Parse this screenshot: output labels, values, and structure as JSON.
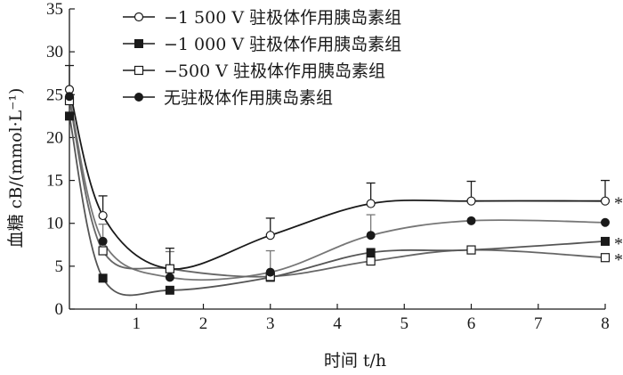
{
  "chart_data": {
    "type": "line",
    "xlabel": "时间 t/h",
    "ylabel": "血糖 cB/(mmol·L⁻¹)",
    "xlim": [
      0,
      8
    ],
    "ylim": [
      0,
      35
    ],
    "xticks": [
      1,
      2,
      3,
      4,
      5,
      6,
      7,
      8
    ],
    "yticks": [
      0,
      5,
      10,
      15,
      20,
      25,
      30,
      35
    ],
    "xtick_labels": [
      "1",
      "2",
      "3",
      "4",
      "5",
      "6",
      "7",
      "8"
    ],
    "ytick_labels": [
      "0",
      "5",
      "10",
      "15",
      "20",
      "25",
      "30",
      "35"
    ],
    "grid": false,
    "legend_position": "top-center",
    "series": [
      {
        "name": "−1 500 V 驻极体作用胰岛素组",
        "marker": "open-circle",
        "color": "#1a1a1a",
        "x": [
          0,
          0.5,
          1.5,
          3,
          4.5,
          6,
          8
        ],
        "y": [
          25.6,
          10.9,
          4.7,
          8.6,
          12.3,
          12.6,
          12.6
        ],
        "error": [
          2.8,
          2.3,
          2.4,
          2.0,
          2.4,
          2.3,
          2.4
        ]
      },
      {
        "name": "−1 000 V 驻极体作用胰岛素组",
        "marker": "filled-square",
        "color": "#555555",
        "x": [
          0,
          0.5,
          1.5,
          3,
          4.5,
          6,
          8
        ],
        "y": [
          22.5,
          3.6,
          2.2,
          3.7,
          6.6,
          6.9,
          7.9
        ],
        "error": [
          0,
          0,
          0,
          0,
          0,
          0,
          0
        ]
      },
      {
        "name": "−500 V 驻极体作用胰岛素组",
        "marker": "open-square",
        "color": "#666666",
        "x": [
          0,
          0.5,
          1.5,
          3,
          4.5,
          6,
          8
        ],
        "y": [
          24.3,
          6.8,
          4.7,
          3.8,
          5.6,
          6.9,
          6.0
        ],
        "error": [
          0,
          0,
          0,
          0,
          0,
          0,
          0
        ]
      },
      {
        "name": "无驻极体作用胰岛素组",
        "marker": "filled-circle",
        "color": "#777777",
        "x": [
          0,
          0.5,
          1.5,
          3,
          4.5,
          6,
          8
        ],
        "y": [
          24.8,
          7.9,
          3.7,
          4.3,
          8.6,
          10.3,
          10.1
        ],
        "error": [
          0,
          2.0,
          3.0,
          2.5,
          2.4,
          0,
          0
        ]
      }
    ],
    "annotations": [
      {
        "text": "*",
        "x": 8,
        "y": 12.6
      },
      {
        "text": "*",
        "x": 8,
        "y": 7.9
      },
      {
        "text": "*",
        "x": 8,
        "y": 6.0
      }
    ]
  }
}
